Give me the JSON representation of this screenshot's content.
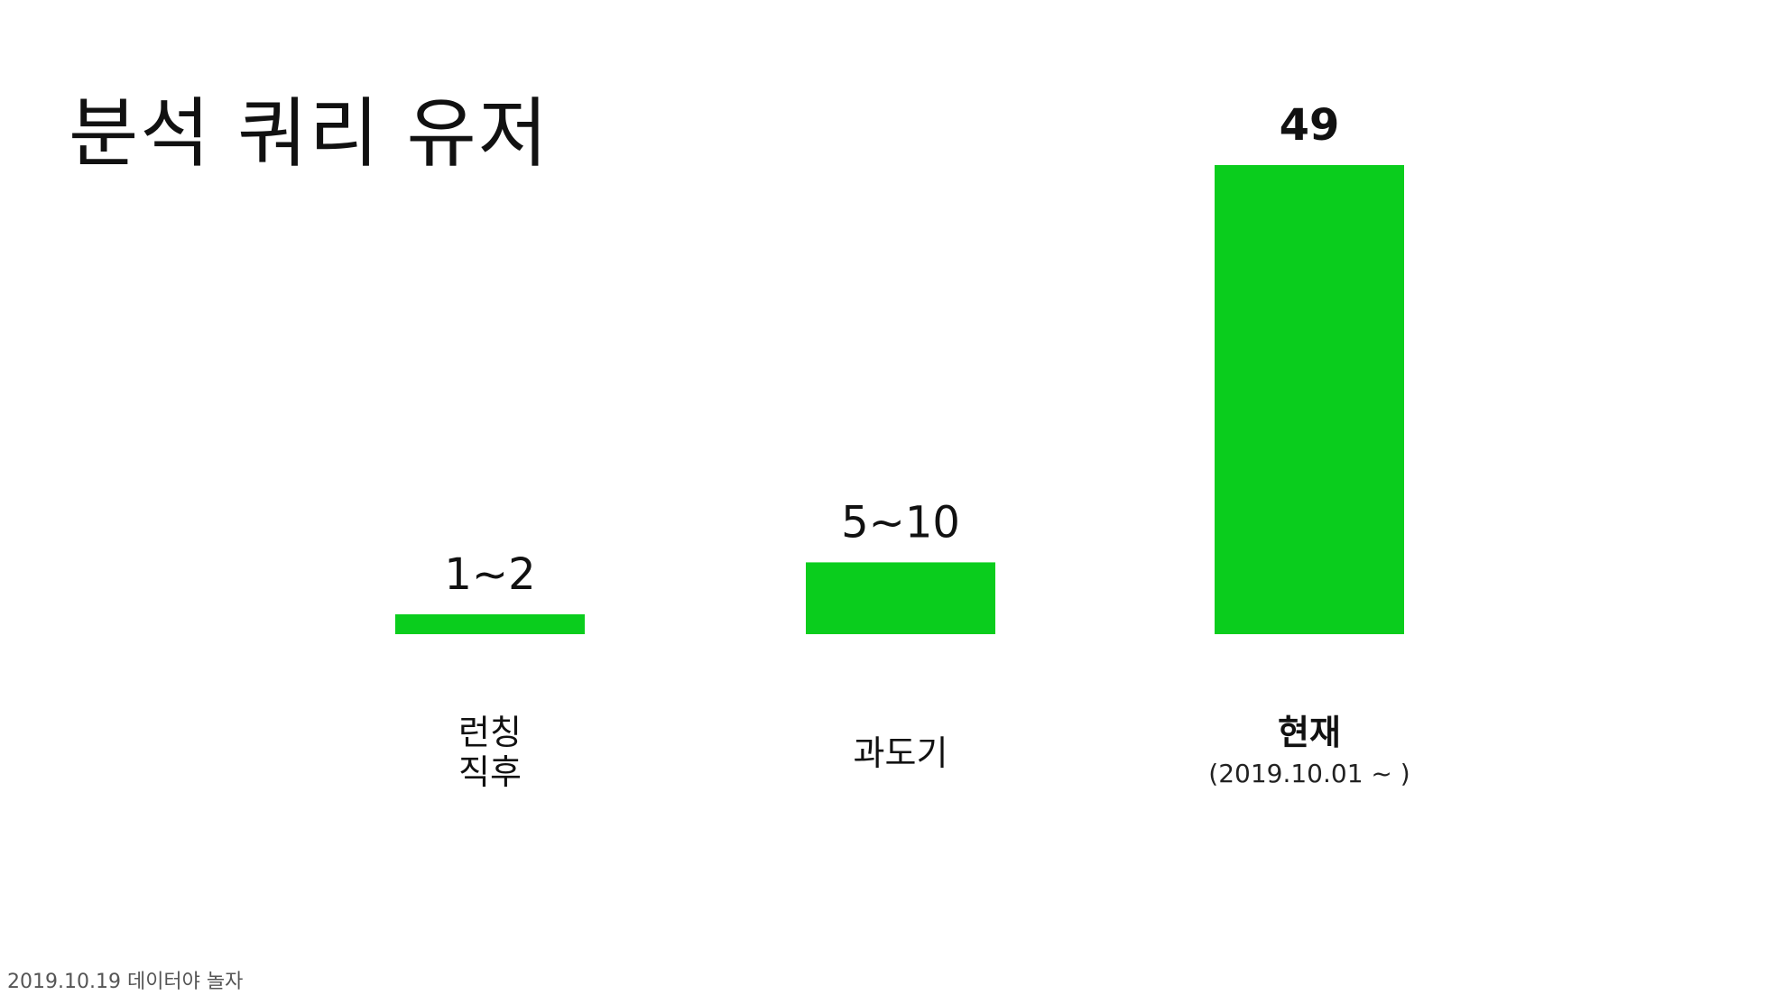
{
  "slide": {
    "title": "분석 쿼리 유저",
    "footer": "2019.10.19 데이터야 놀자"
  },
  "colors": {
    "bar": "#0acd1d",
    "text": "#111111",
    "footer_text": "#555555",
    "background": "#ffffff"
  },
  "chart_data": {
    "type": "bar",
    "title": "",
    "xlabel": "",
    "ylabel": "",
    "grid": false,
    "legend": "none",
    "ylim": [
      0,
      49
    ],
    "categories": [
      {
        "label_lines": [
          "런칭",
          "직후"
        ],
        "sub": "",
        "value": 1.5,
        "value_label": "1~2",
        "emphasis": false
      },
      {
        "label_lines": [
          "과도기"
        ],
        "sub": "",
        "value": 7.5,
        "value_label": "5~10",
        "emphasis": false
      },
      {
        "label_lines": [
          "현재"
        ],
        "sub": "(2019.10.01 ~ )",
        "value": 49,
        "value_label": "49",
        "emphasis": true
      }
    ]
  }
}
